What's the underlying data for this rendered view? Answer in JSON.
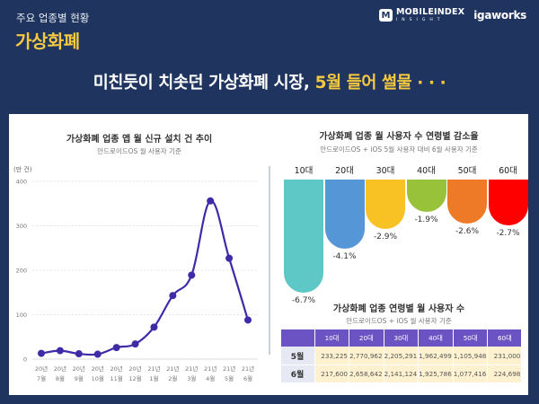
{
  "header": {
    "kicker": "주요 업종별 현황",
    "title": "가상화폐",
    "logos": {
      "mobileindex_badge": "M",
      "mobileindex_name": "MOBILEINDEX",
      "mobileindex_sub": "INSIGHT",
      "igaworks": "igaworks"
    }
  },
  "headline": {
    "part1": "미친듯이 치솟던 가상화폐 시장, ",
    "part2": "5월 들어 썰물 · · ·"
  },
  "colors": {
    "background": "#1f355f",
    "accent_yellow": "#f5c842",
    "line": "#3f2aa8",
    "table_header": "#6c53c4",
    "table_cell": "#fdf1cf"
  },
  "chart_data": [
    {
      "type": "line",
      "title": "가상화폐 업종 앱 월 신규 설치 건 추이",
      "subtitle": "안드로이드OS 월 사용자 기준",
      "ylabel": "(만 건)",
      "xlabel": "",
      "ylim": [
        0,
        400
      ],
      "yticks": [
        0,
        100,
        200,
        300,
        400
      ],
      "grid": true,
      "categories": [
        [
          "20년",
          "7월"
        ],
        [
          "20년",
          "8월"
        ],
        [
          "20년",
          "9월"
        ],
        [
          "20년",
          "10월"
        ],
        [
          "20년",
          "11월"
        ],
        [
          "20년",
          "12월"
        ],
        [
          "21년",
          "1월"
        ],
        [
          "21년",
          "2월"
        ],
        [
          "21년",
          "3월"
        ],
        [
          "21년",
          "4월"
        ],
        [
          "21년",
          "5월"
        ],
        [
          "21년",
          "6월"
        ]
      ],
      "values": [
        13,
        19,
        12,
        11,
        26,
        34,
        72,
        143,
        189,
        356,
        227,
        88
      ]
    },
    {
      "type": "bar",
      "title": "가상화폐 업종 월 사용자 수 연령별 감소율",
      "subtitle": "안드로이드OS + iOS 5월 사용자 대비 6월 사용자 기준",
      "categories": [
        "10대",
        "20대",
        "30대",
        "40대",
        "50대",
        "60대"
      ],
      "values": [
        -6.7,
        -4.1,
        -2.9,
        -1.9,
        -2.6,
        -2.7
      ],
      "labels": [
        "-6.7%",
        "-4.1%",
        "-2.9%",
        "-1.9%",
        "-2.6%",
        "-2.7%"
      ],
      "colors": [
        "#5ec8c6",
        "#5596d6",
        "#f8c225",
        "#98c23a",
        "#ee7a28",
        "#ff0000"
      ]
    },
    {
      "type": "table",
      "title": "가상화폐 업종 연령별 월 사용자 수",
      "subtitle": "안드로이드OS + iOS  월 사용자 기준",
      "columns": [
        "",
        "10대",
        "20대",
        "30대",
        "40대",
        "50대",
        "60대"
      ],
      "rows": [
        {
          "label": "5월",
          "values": [
            "233,225",
            "2,770,962",
            "2,205,291",
            "1,962,499",
            "1,105,948",
            "231,000"
          ]
        },
        {
          "label": "6월",
          "values": [
            "217,600",
            "2,658,642",
            "2,141,124",
            "1,925,786",
            "1,077,416",
            "224,698"
          ]
        }
      ]
    }
  ]
}
